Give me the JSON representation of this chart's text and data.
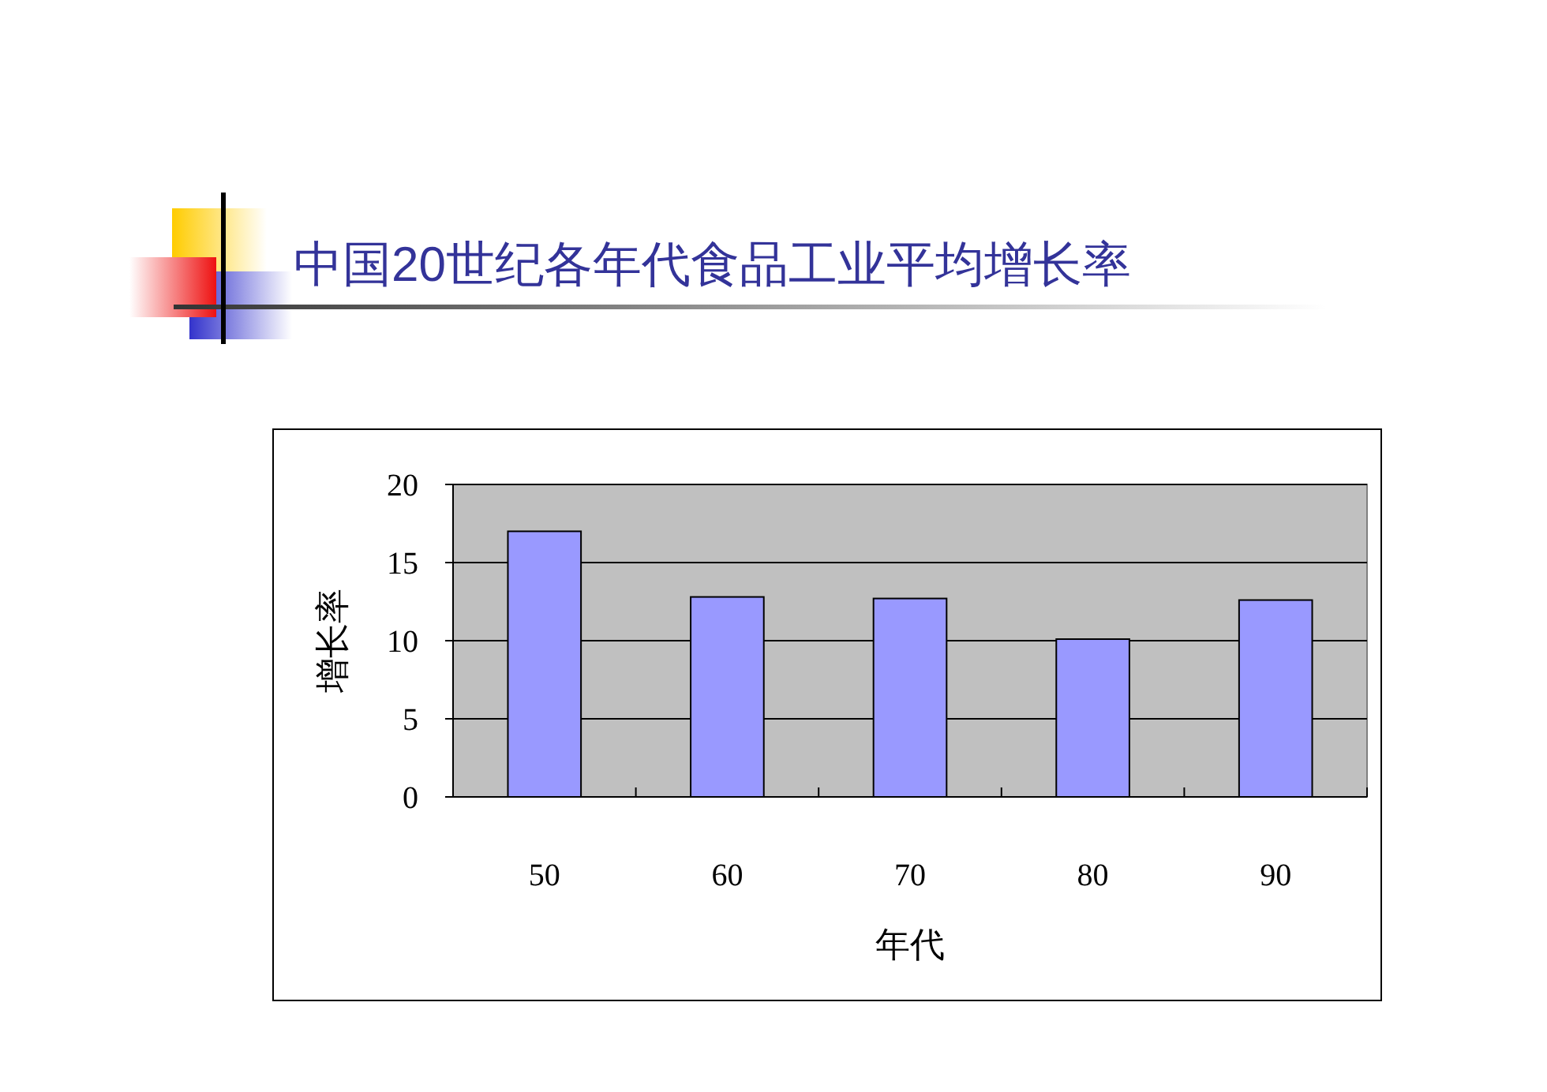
{
  "chart_data": {
    "type": "bar",
    "title": "中国20世纪各年代食品工业平均增长率",
    "xlabel": "年代",
    "ylabel": "增长率",
    "categories": [
      "50",
      "60",
      "70",
      "80",
      "90"
    ],
    "values": [
      17.0,
      12.8,
      12.7,
      10.1,
      12.6
    ],
    "color": "#9999ff",
    "ylim": [
      0,
      20
    ],
    "yticks": [
      0,
      5,
      10,
      15,
      20
    ],
    "grid": "y"
  }
}
